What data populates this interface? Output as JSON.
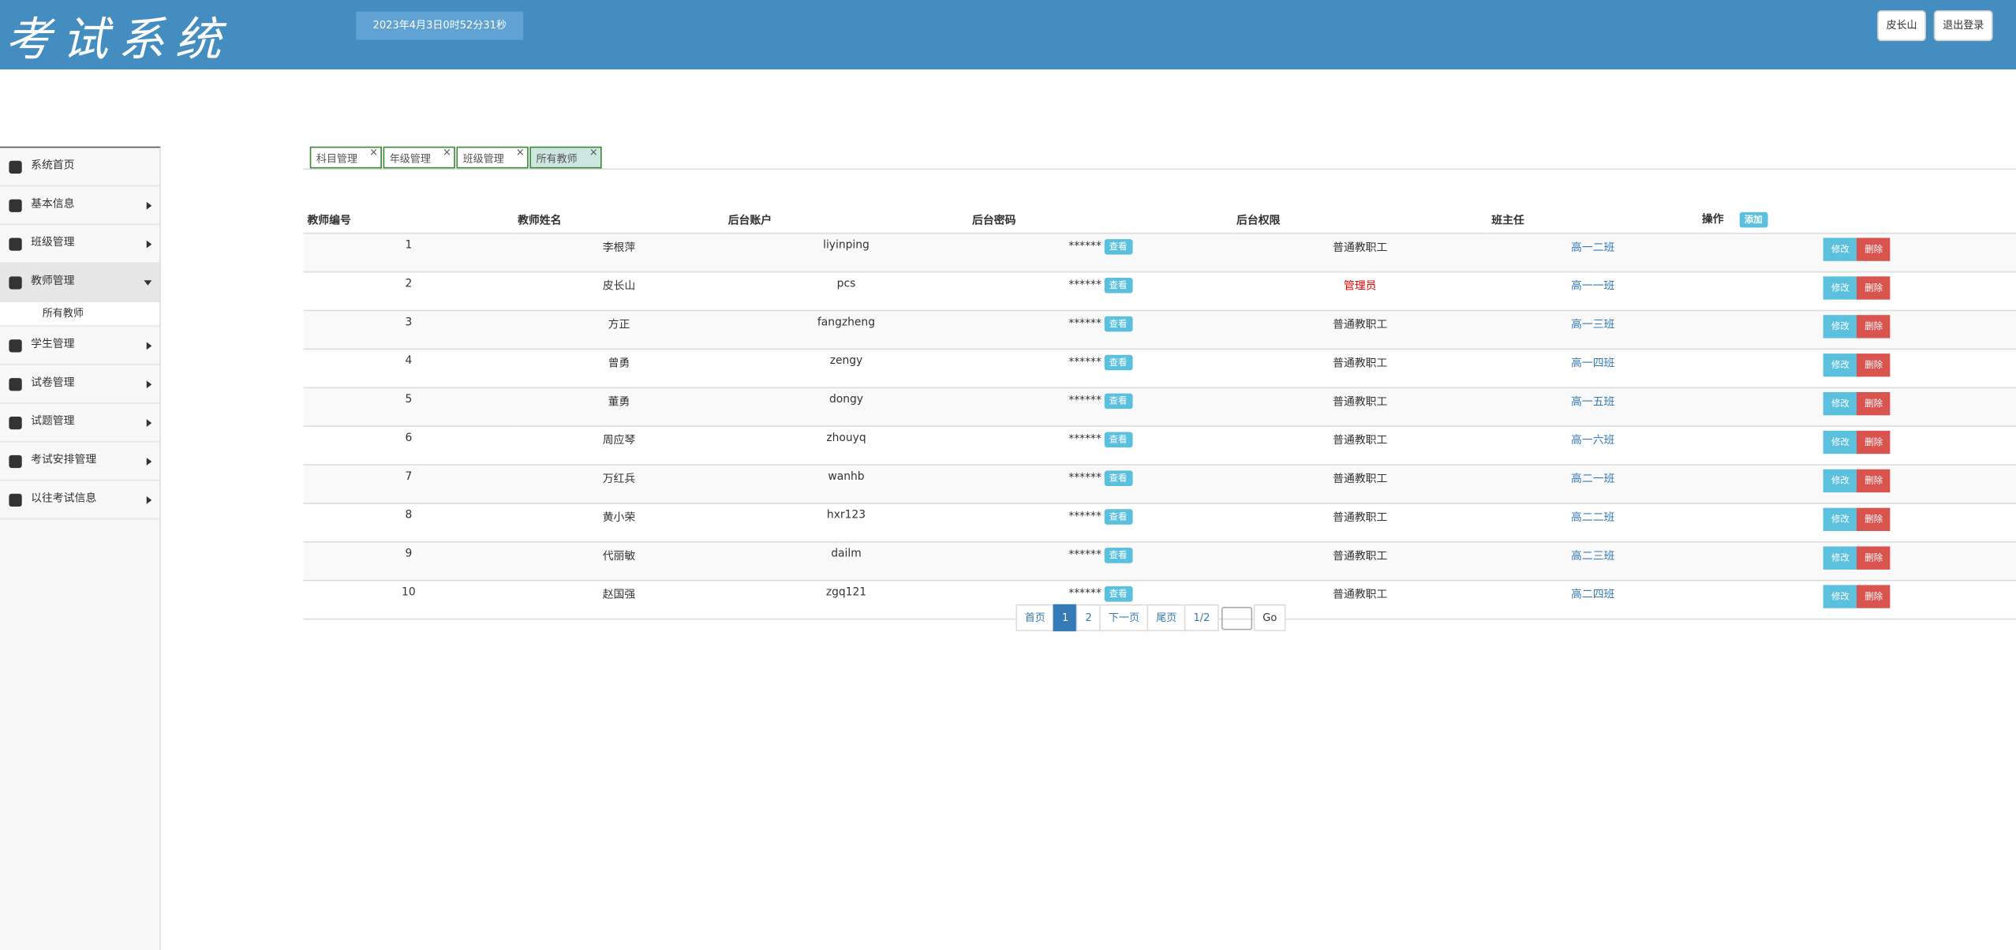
{
  "header": {
    "title": "考试系统",
    "datetime": "2023年4月3日0时52分31秒",
    "user": "皮长山",
    "logout": "退出登录"
  },
  "menu": [
    {
      "label": "系统首页"
    },
    {
      "label": "基本信息"
    },
    {
      "label": "班级管理"
    },
    {
      "label": "教师管理",
      "children": [
        "所有教师"
      ]
    },
    {
      "label": "学生管理"
    },
    {
      "label": "试卷管理"
    },
    {
      "label": "试题管理"
    },
    {
      "label": "考试安排管理"
    },
    {
      "label": "以往考试信息"
    }
  ],
  "tabs": [
    "科目管理",
    "年级管理",
    "班级管理",
    "所有教师"
  ],
  "table": {
    "headers": [
      "教师编号",
      "教师姓名",
      "后台账户",
      "后台密码",
      "后台权限",
      "班主任",
      "操作"
    ],
    "add": "添加",
    "rows": [
      [
        "1",
        "李根萍",
        "liyinping",
        "******",
        "查看",
        "普通教职工",
        "高一二班",
        "修改",
        "删除"
      ],
      [
        "2",
        "皮长山",
        "pcs",
        "******",
        "查看",
        "管理员",
        "高一一班",
        "修改",
        "删除"
      ],
      [
        "3",
        "方正",
        "fangzheng",
        "******",
        "查看",
        "普通教职工",
        "高一三班",
        "修改",
        "删除"
      ],
      [
        "4",
        "曾勇",
        "zengy",
        "******",
        "查看",
        "普通教职工",
        "高一四班",
        "修改",
        "删除"
      ],
      [
        "5",
        "董勇",
        "dongy",
        "******",
        "查看",
        "普通教职工",
        "高一五班",
        "修改",
        "删除"
      ],
      [
        "6",
        "周应琴",
        "zhouyq",
        "******",
        "查看",
        "普通教职工",
        "高一六班",
        "修改",
        "删除"
      ],
      [
        "7",
        "万红兵",
        "wanhb",
        "******",
        "查看",
        "普通教职工",
        "高二一班",
        "修改",
        "删除"
      ],
      [
        "8",
        "黄小荣",
        "hxr123",
        "******",
        "查看",
        "普通教职工",
        "高二二班",
        "修改",
        "删除"
      ],
      [
        "9",
        "代丽敏",
        "dailm",
        "******",
        "查看",
        "普通教职工",
        "高二三班",
        "修改",
        "删除"
      ],
      [
        "10",
        "赵国强",
        "zgq121",
        "******",
        "查看",
        "普通教职工",
        "高二四班",
        "修改",
        "删除"
      ]
    ]
  },
  "pagination": {
    "first": "首页",
    "pages": [
      "1",
      "2"
    ],
    "next": "下一页",
    "last": "尾页",
    "status": "1/2",
    "go": "Go"
  }
}
